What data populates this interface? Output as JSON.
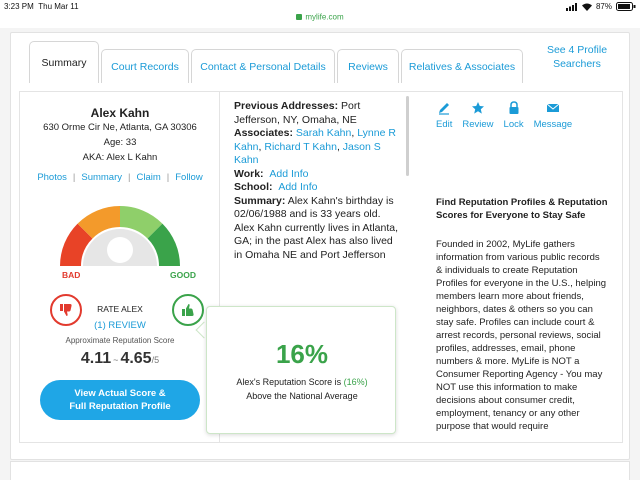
{
  "status": {
    "time": "3:23 PM",
    "date": "Thu Mar 11",
    "battery": "87%"
  },
  "browser": {
    "url": "mylife.com"
  },
  "tabs": [
    {
      "label": "Summary",
      "active": true
    },
    {
      "label": "Court Records"
    },
    {
      "label": "Contact & Personal Details"
    },
    {
      "label": "Reviews"
    },
    {
      "label": "Relatives & Associates"
    }
  ],
  "see_profiles": "See 4 Profile Searchers",
  "profile": {
    "name": "Alex Kahn",
    "address": "630 Orme Cir Ne, Atlanta, GA 30306",
    "age": "Age: 33",
    "aka": "AKA: Alex L Kahn",
    "links": [
      "Photos",
      "Summary",
      "Claim",
      "Follow"
    ],
    "bad_label": "BAD",
    "good_label": "GOOD",
    "rate_label": "RATE ALEX",
    "review_label": "(1) REVIEW",
    "approx_label": "Approximate Reputation Score",
    "score_low": "4.11",
    "score_sep": "~",
    "score_high": "4.65",
    "score_outof": "/5",
    "cta_line1": "View Actual Score &",
    "cta_line2": "Full Reputation Profile"
  },
  "details": {
    "prev_label": "Previous Addresses:",
    "prev_value": "Port Jefferson, NY, Omaha, NE",
    "assoc_label": "Associates:",
    "assoc_1": "Sarah Kahn",
    "assoc_2": "Lynne R Kahn",
    "assoc_3": "Richard T Kahn",
    "assoc_4": "Jason S Kahn",
    "work_label": "Work:",
    "work_value": "Add Info",
    "school_label": "School:",
    "school_value": "Add Info",
    "summary_label": "Summary:",
    "summary_text": "Alex Kahn's birthday is 02/06/1988 and is 33 years old. Alex Kahn currently lives in Atlanta, GA; in the past Alex has also lived in Omaha NE and Port Jefferson"
  },
  "popup": {
    "percent": "16%",
    "line1_pre": "Alex's Reputation Score is",
    "line1_pct": "(16%)",
    "line2": "Above the National Average"
  },
  "actions": [
    {
      "label": "Edit",
      "icon": "pencil-icon"
    },
    {
      "label": "Review",
      "icon": "star-icon"
    },
    {
      "label": "Lock",
      "icon": "lock-icon"
    },
    {
      "label": "Message",
      "icon": "envelope-icon"
    }
  ],
  "info": {
    "title": "Find Reputation Profiles & Reputation Scores for Everyone to Stay Safe",
    "body": "Founded in 2002, MyLife gathers information from various public records & individuals to create Reputation Profiles for everyone in the U.S., helping members learn more about friends, neighbors, dates & others so you can stay safe. Profiles can include court & arrest records, personal reviews, social profiles, addresses, email, phone numbers & more. MyLife is NOT a Consumer Reporting Agency - You may NOT use this information to make decisions about consumer credit, employment, tenancy or any other purpose that would require"
  },
  "colors": {
    "link": "#1b9bd7",
    "bad": "#e23a2e",
    "good": "#3aa34a",
    "cta": "#1fa6e6"
  }
}
